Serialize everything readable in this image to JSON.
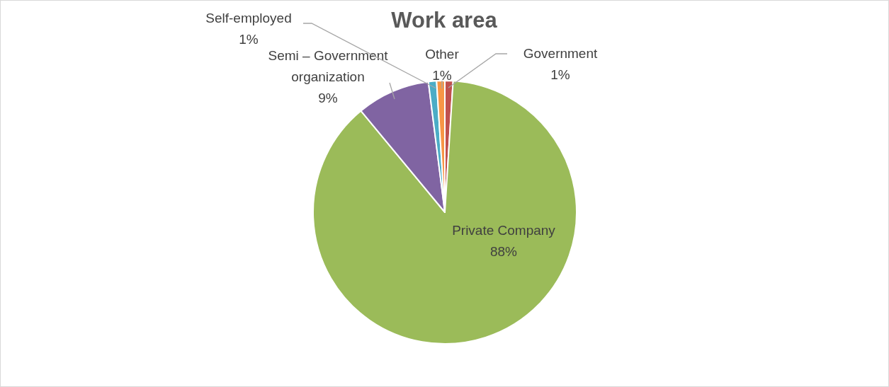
{
  "chart_data": {
    "type": "pie",
    "title": "Work area",
    "categories": [
      "Government",
      "Private Company",
      "Semi – Government organization",
      "Self-employed",
      "Other"
    ],
    "values": [
      1,
      88,
      9,
      1,
      1
    ],
    "colors": [
      "#c0504d",
      "#9bbb59",
      "#8064a2",
      "#4bacc6",
      "#f79646"
    ],
    "value_labels": [
      "1%",
      "88%",
      "9%",
      "1%",
      "1%"
    ]
  }
}
